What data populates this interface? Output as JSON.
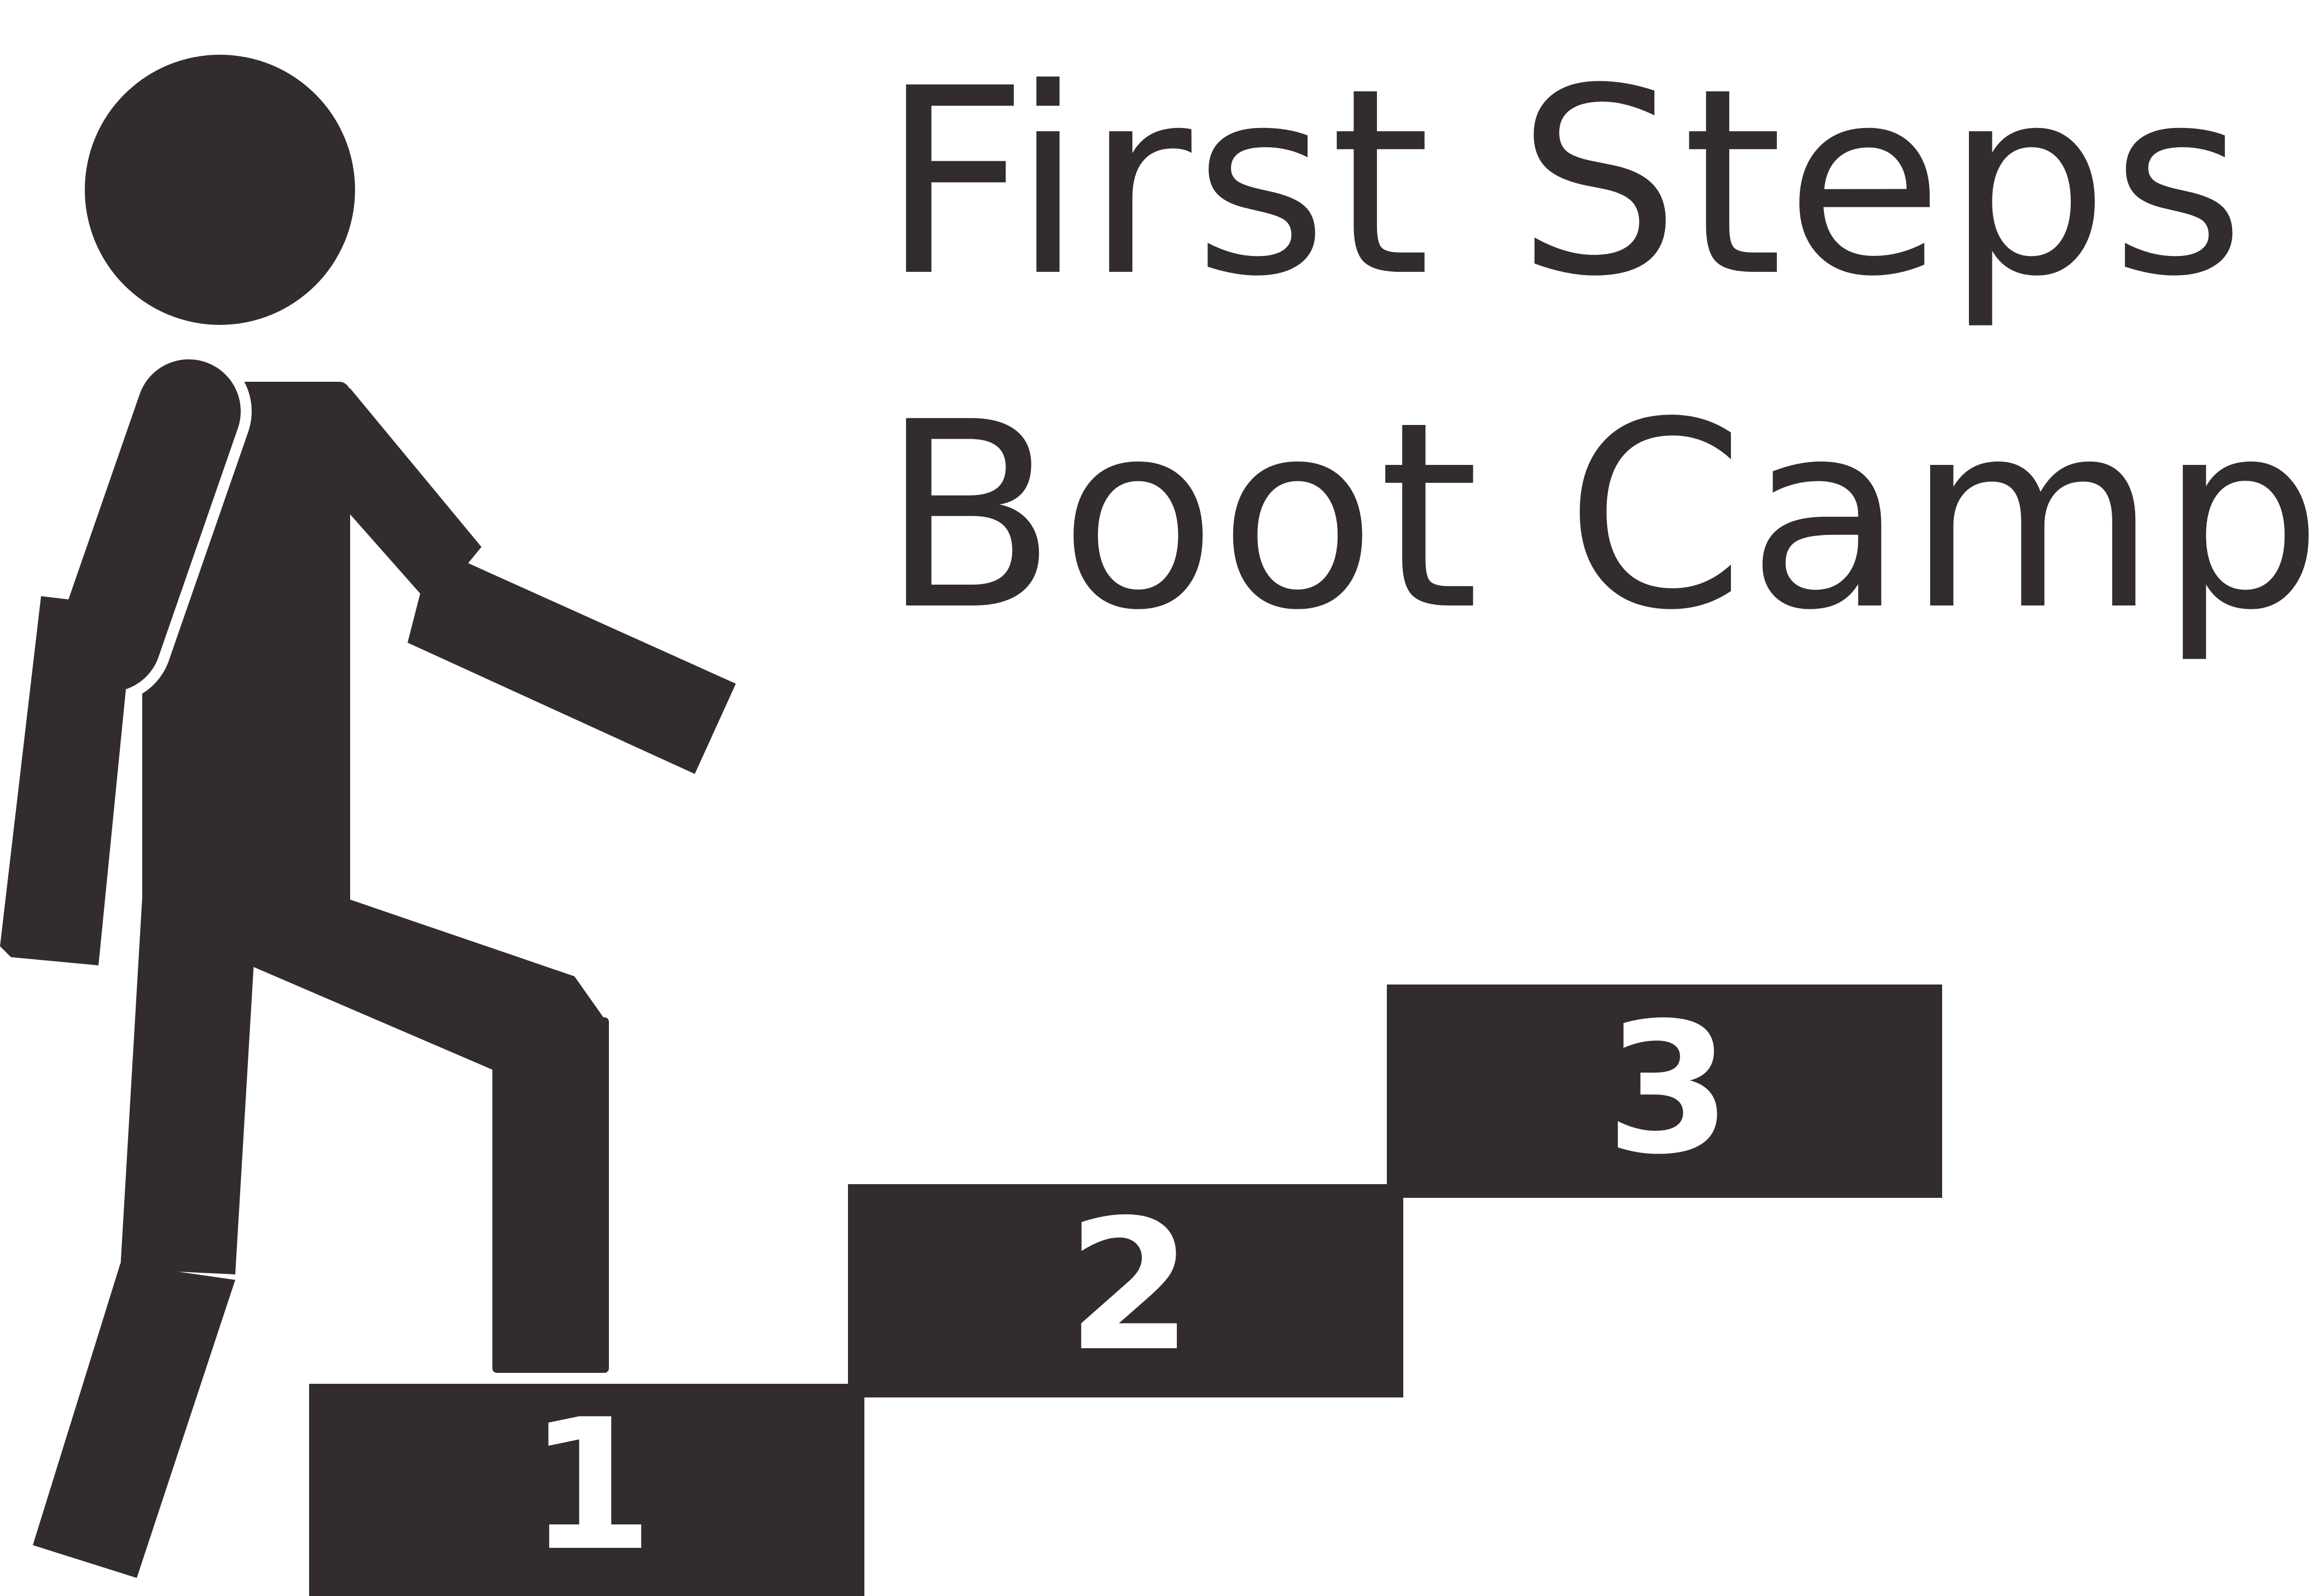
{
  "title": {
    "line1": "First Steps",
    "line2": "Boot Camp"
  },
  "steps": [
    {
      "number": "1"
    },
    {
      "number": "2"
    },
    {
      "number": "3"
    }
  ],
  "colors": {
    "ink": "#322c2c",
    "background": "#ffffff",
    "number_text": "#ffffff"
  },
  "icons": {
    "figure": "walking-person-icon"
  }
}
